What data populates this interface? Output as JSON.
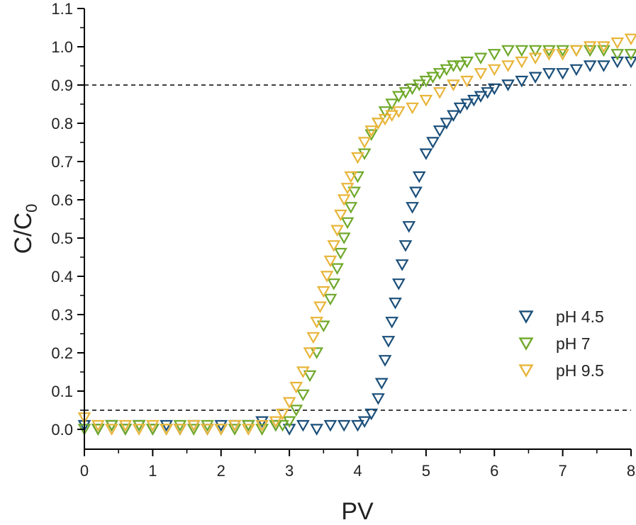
{
  "chart_data": {
    "type": "scatter",
    "title": "",
    "xlabel": "PV",
    "ylabel_main": "C/C",
    "ylabel_sub": "0",
    "xlim": [
      0,
      8
    ],
    "ylim": [
      -0.05,
      1.1
    ],
    "xticks": [
      0,
      1,
      2,
      3,
      4,
      5,
      6,
      7,
      8
    ],
    "yticks": [
      0.0,
      0.1,
      0.2,
      0.3,
      0.4,
      0.5,
      0.6,
      0.7,
      0.8,
      0.9,
      1.0,
      1.1
    ],
    "ytick_labels": [
      "0.0",
      "0.1",
      "0.2",
      "0.3",
      "0.4",
      "0.5",
      "0.6",
      "0.7",
      "0.8",
      "0.9",
      "1.0",
      "1.1"
    ],
    "reference_lines": [
      0.9,
      0.05
    ],
    "marker": "down-triangle-open",
    "legend_position": "right-middle",
    "series": [
      {
        "name": "pH 4.5",
        "color": "#1b4f7a",
        "x": [
          0.0,
          0.2,
          0.4,
          0.6,
          0.8,
          1.0,
          1.2,
          1.4,
          1.6,
          1.8,
          2.0,
          2.2,
          2.4,
          2.6,
          2.8,
          3.0,
          3.2,
          3.4,
          3.6,
          3.8,
          4.0,
          4.1,
          4.2,
          4.3,
          4.35,
          4.4,
          4.45,
          4.5,
          4.55,
          4.6,
          4.65,
          4.7,
          4.75,
          4.8,
          4.85,
          4.9,
          5.0,
          5.1,
          5.2,
          5.3,
          5.4,
          5.5,
          5.6,
          5.7,
          5.8,
          5.9,
          6.0,
          6.2,
          6.4,
          6.6,
          6.8,
          7.0,
          7.2,
          7.4,
          7.6,
          7.8,
          8.0
        ],
        "y": [
          0.01,
          0.0,
          0.01,
          0.0,
          0.01,
          0.0,
          0.01,
          0.0,
          0.01,
          0.0,
          0.01,
          0.01,
          0.01,
          0.02,
          0.01,
          0.0,
          0.01,
          0.0,
          0.01,
          0.01,
          0.01,
          0.02,
          0.04,
          0.08,
          0.12,
          0.18,
          0.23,
          0.28,
          0.33,
          0.38,
          0.43,
          0.48,
          0.53,
          0.58,
          0.62,
          0.66,
          0.72,
          0.75,
          0.78,
          0.8,
          0.82,
          0.84,
          0.85,
          0.86,
          0.87,
          0.88,
          0.89,
          0.9,
          0.91,
          0.92,
          0.93,
          0.93,
          0.94,
          0.95,
          0.95,
          0.96,
          0.96
        ]
      },
      {
        "name": "pH 7",
        "color": "#6fa82a",
        "x": [
          0.0,
          0.2,
          0.4,
          0.6,
          0.8,
          1.0,
          1.2,
          1.4,
          1.6,
          1.8,
          2.0,
          2.2,
          2.4,
          2.6,
          2.8,
          2.9,
          3.0,
          3.1,
          3.2,
          3.3,
          3.4,
          3.5,
          3.6,
          3.65,
          3.7,
          3.75,
          3.8,
          3.85,
          3.9,
          3.95,
          4.0,
          4.1,
          4.2,
          4.3,
          4.4,
          4.5,
          4.6,
          4.7,
          4.8,
          4.9,
          5.0,
          5.1,
          5.2,
          5.3,
          5.4,
          5.5,
          5.6,
          5.8,
          6.0,
          6.2,
          6.4,
          6.6,
          6.8,
          7.0,
          7.2,
          7.4,
          7.6,
          7.8,
          8.0
        ],
        "y": [
          0.0,
          0.0,
          0.01,
          0.0,
          0.01,
          0.0,
          0.0,
          0.01,
          0.0,
          0.01,
          0.0,
          0.0,
          0.01,
          0.0,
          0.01,
          0.01,
          0.02,
          0.05,
          0.09,
          0.14,
          0.2,
          0.27,
          0.34,
          0.38,
          0.42,
          0.46,
          0.5,
          0.54,
          0.58,
          0.62,
          0.66,
          0.72,
          0.77,
          0.8,
          0.83,
          0.85,
          0.87,
          0.88,
          0.89,
          0.9,
          0.91,
          0.92,
          0.93,
          0.94,
          0.95,
          0.95,
          0.96,
          0.97,
          0.98,
          0.99,
          0.99,
          0.99,
          0.99,
          0.99,
          0.99,
          0.99,
          0.99,
          0.98,
          0.98
        ]
      },
      {
        "name": "pH 9.5",
        "color": "#e8b53a",
        "x": [
          0.0,
          0.2,
          0.4,
          0.6,
          0.8,
          1.0,
          1.2,
          1.4,
          1.6,
          1.8,
          2.0,
          2.2,
          2.4,
          2.6,
          2.8,
          2.9,
          3.0,
          3.1,
          3.2,
          3.3,
          3.35,
          3.4,
          3.45,
          3.5,
          3.55,
          3.6,
          3.65,
          3.7,
          3.75,
          3.8,
          3.85,
          3.9,
          4.0,
          4.1,
          4.2,
          4.3,
          4.4,
          4.5,
          4.6,
          4.8,
          5.0,
          5.2,
          5.4,
          5.6,
          5.8,
          6.0,
          6.2,
          6.4,
          6.6,
          6.8,
          7.0,
          7.2,
          7.4,
          7.6,
          7.8,
          8.0
        ],
        "y": [
          0.03,
          0.01,
          0.0,
          0.01,
          0.0,
          0.01,
          0.0,
          0.0,
          0.01,
          0.0,
          0.0,
          0.01,
          0.0,
          0.01,
          0.02,
          0.04,
          0.07,
          0.11,
          0.15,
          0.2,
          0.24,
          0.28,
          0.32,
          0.36,
          0.4,
          0.44,
          0.48,
          0.52,
          0.56,
          0.6,
          0.63,
          0.66,
          0.71,
          0.75,
          0.78,
          0.8,
          0.81,
          0.82,
          0.83,
          0.84,
          0.86,
          0.88,
          0.9,
          0.91,
          0.93,
          0.94,
          0.95,
          0.96,
          0.97,
          0.98,
          0.98,
          0.99,
          1.0,
          1.0,
          1.01,
          1.02
        ]
      }
    ]
  }
}
